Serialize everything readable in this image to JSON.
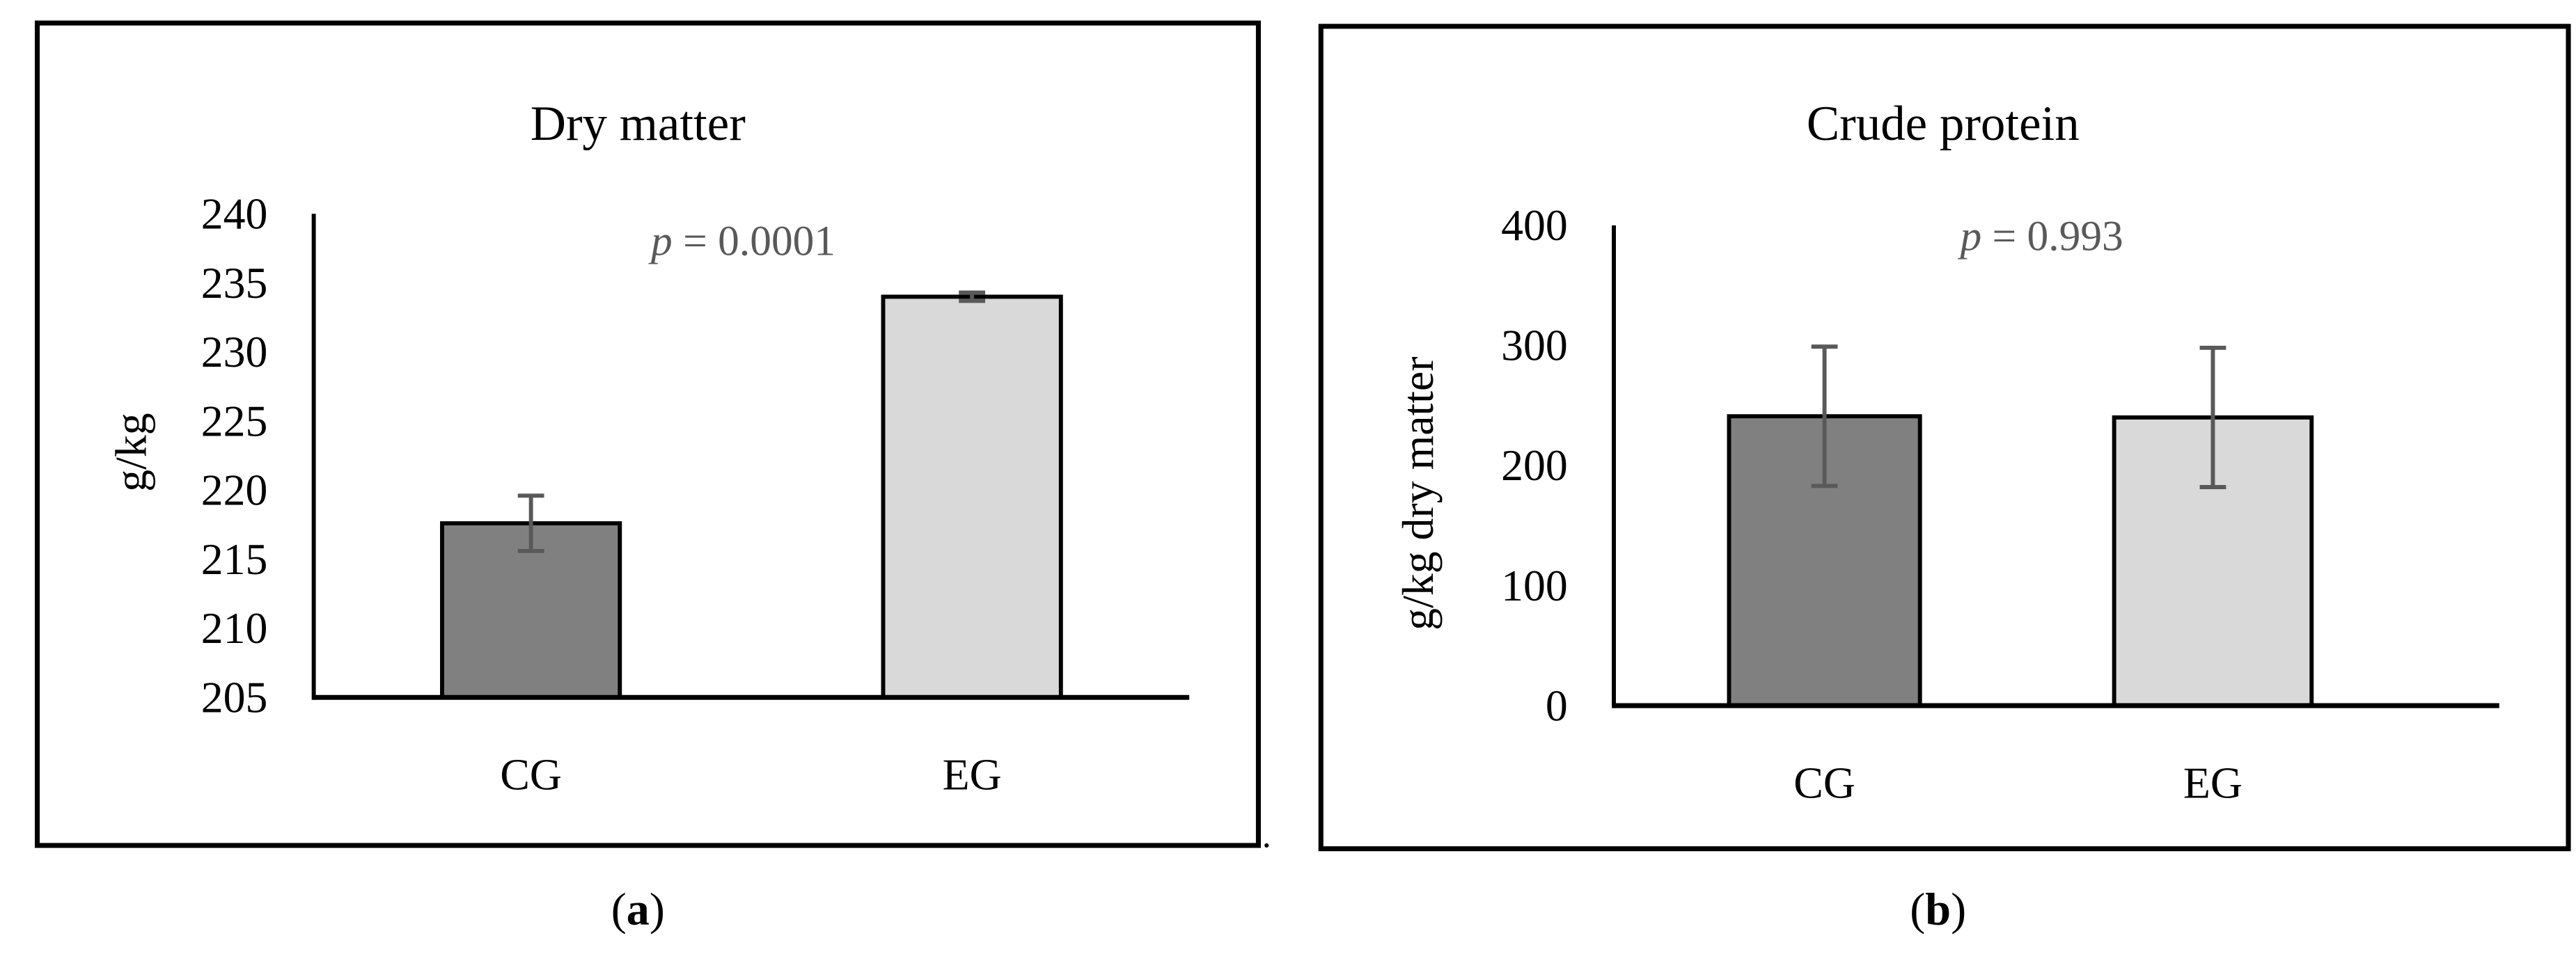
{
  "chart_data": [
    {
      "type": "bar",
      "panel_label": "a",
      "title": "Dry matter",
      "xlabel": "",
      "ylabel": "g/kg",
      "ylim": [
        205,
        240
      ],
      "yticks": [
        205,
        210,
        215,
        220,
        225,
        230,
        235,
        240
      ],
      "categories": [
        "CG",
        "EG"
      ],
      "values": [
        217.6,
        234.0
      ],
      "errors": [
        2.0,
        0.3
      ],
      "annotation": {
        "p_symbol": "p",
        "p_text": " = 0.0001"
      },
      "grid": false,
      "colors": [
        "#808080",
        "#d9d9d9"
      ],
      "error_color": "#595959"
    },
    {
      "type": "bar",
      "panel_label": "b",
      "title": "Crude protein",
      "xlabel": "",
      "ylabel": "g/kg dry matter",
      "ylim": [
        0,
        400
      ],
      "yticks": [
        0,
        100,
        200,
        300,
        400
      ],
      "categories": [
        "CG",
        "EG"
      ],
      "values": [
        241,
        240
      ],
      "errors": [
        58,
        58
      ],
      "annotation": {
        "p_symbol": "p",
        "p_text": " = 0.993"
      },
      "grid": false,
      "colors": [
        "#808080",
        "#d9d9d9"
      ],
      "error_color": "#595959"
    }
  ]
}
